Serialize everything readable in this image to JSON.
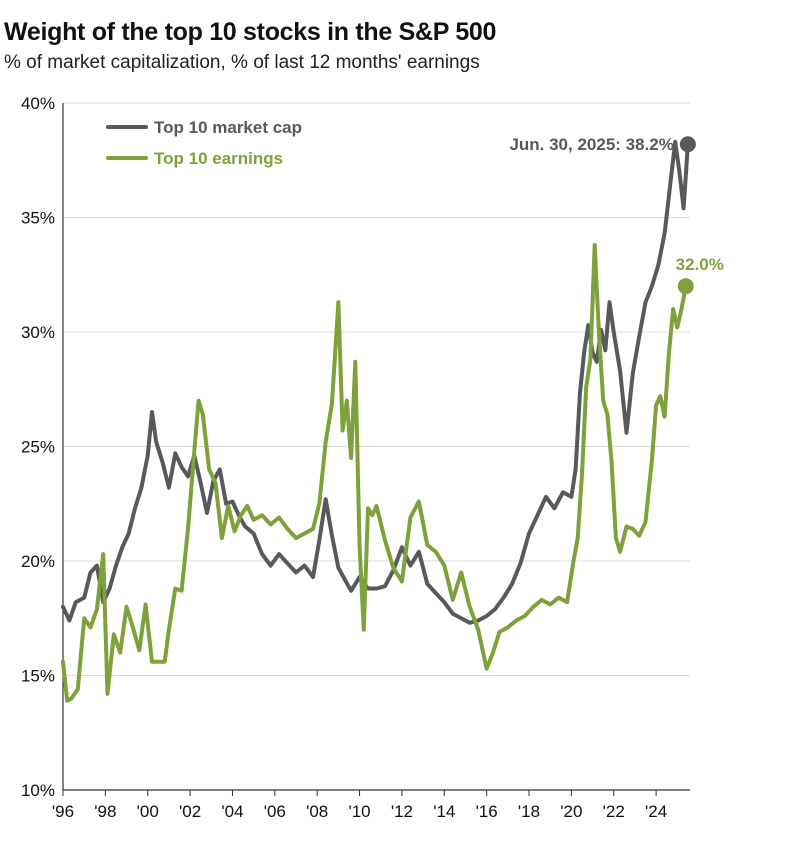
{
  "chart_data": {
    "type": "line",
    "title": "Weight of the top 10 stocks in the S&P 500",
    "subtitle": "% of market capitalization, % of last 12 months' earnings",
    "xlabel": "",
    "ylabel": "",
    "xlim": [
      1996,
      2025.6
    ],
    "ylim": [
      10,
      40
    ],
    "y_ticks": [
      10,
      15,
      20,
      25,
      30,
      35,
      40
    ],
    "y_tick_labels": [
      "10%",
      "15%",
      "20%",
      "25%",
      "30%",
      "35%",
      "40%"
    ],
    "x_ticks": [
      1996,
      1998,
      2000,
      2002,
      2004,
      2006,
      2008,
      2010,
      2012,
      2014,
      2016,
      2018,
      2020,
      2022,
      2024
    ],
    "x_tick_labels": [
      "'96",
      "'98",
      "'00",
      "'02",
      "'04",
      "'06",
      "'08",
      "'10",
      "'12",
      "'14",
      "'16",
      "'18",
      "'20",
      "'22",
      "'24"
    ],
    "grid": true,
    "legend_position": "top-left",
    "series": [
      {
        "name": "Top 10 market cap",
        "color": "#58595b",
        "x": [
          1996.0,
          1996.3,
          1996.6,
          1997.0,
          1997.3,
          1997.6,
          1997.9,
          1998.2,
          1998.5,
          1998.8,
          1999.1,
          1999.4,
          1999.7,
          2000.0,
          2000.2,
          2000.4,
          2000.7,
          2001.0,
          2001.3,
          2001.6,
          2001.9,
          2002.2,
          2002.5,
          2002.8,
          2003.1,
          2003.4,
          2003.7,
          2004.0,
          2004.3,
          2004.6,
          2005.0,
          2005.4,
          2005.8,
          2006.2,
          2006.6,
          2007.0,
          2007.4,
          2007.8,
          2008.1,
          2008.4,
          2008.7,
          2009.0,
          2009.3,
          2009.6,
          2010.0,
          2010.4,
          2010.8,
          2011.2,
          2011.6,
          2012.0,
          2012.4,
          2012.8,
          2013.2,
          2013.6,
          2014.0,
          2014.4,
          2014.8,
          2015.2,
          2015.6,
          2016.0,
          2016.4,
          2016.8,
          2017.2,
          2017.6,
          2018.0,
          2018.4,
          2018.8,
          2019.2,
          2019.6,
          2020.0,
          2020.2,
          2020.4,
          2020.6,
          2020.8,
          2021.0,
          2021.2,
          2021.4,
          2021.6,
          2021.8,
          2022.0,
          2022.3,
          2022.6,
          2022.9,
          2023.2,
          2023.5,
          2023.8,
          2024.1,
          2024.4,
          2024.7,
          2024.9,
          2025.1,
          2025.3,
          2025.5
        ],
        "values": [
          18.0,
          17.4,
          18.2,
          18.4,
          19.5,
          19.8,
          18.2,
          18.8,
          19.8,
          20.6,
          21.2,
          22.3,
          23.2,
          24.6,
          26.5,
          25.2,
          24.3,
          23.2,
          24.7,
          24.1,
          23.7,
          24.6,
          23.4,
          22.1,
          23.5,
          24.0,
          22.5,
          22.6,
          22.0,
          21.5,
          21.2,
          20.3,
          19.8,
          20.3,
          19.9,
          19.5,
          19.8,
          19.3,
          20.9,
          22.7,
          21.1,
          19.7,
          19.2,
          18.7,
          19.3,
          18.8,
          18.8,
          18.9,
          19.6,
          20.6,
          19.8,
          20.4,
          19.0,
          18.6,
          18.2,
          17.7,
          17.5,
          17.3,
          17.4,
          17.6,
          17.9,
          18.4,
          19.0,
          19.9,
          21.2,
          22.0,
          22.8,
          22.3,
          23.0,
          22.8,
          24.0,
          27.3,
          29.1,
          30.3,
          29.1,
          28.7,
          30.1,
          29.2,
          31.3,
          30.0,
          28.3,
          25.6,
          28.2,
          29.8,
          31.3,
          32.0,
          32.9,
          34.3,
          36.7,
          38.3,
          37.0,
          35.4,
          38.2
        ]
      },
      {
        "name": "Top 10 earnings",
        "color": "#7ea13b",
        "x": [
          1996.0,
          1996.2,
          1996.4,
          1996.7,
          1997.0,
          1997.3,
          1997.6,
          1997.9,
          1998.1,
          1998.4,
          1998.7,
          1999.0,
          1999.3,
          1999.6,
          1999.9,
          2000.2,
          2000.5,
          2000.8,
          2001.0,
          2001.3,
          2001.6,
          2001.9,
          2002.2,
          2002.4,
          2002.6,
          2002.9,
          2003.2,
          2003.5,
          2003.8,
          2004.1,
          2004.4,
          2004.7,
          2005.0,
          2005.4,
          2005.8,
          2006.2,
          2006.6,
          2007.0,
          2007.4,
          2007.8,
          2008.1,
          2008.4,
          2008.7,
          2009.0,
          2009.2,
          2009.4,
          2009.6,
          2009.8,
          2010.0,
          2010.2,
          2010.4,
          2010.6,
          2010.8,
          2011.2,
          2011.6,
          2012.0,
          2012.4,
          2012.8,
          2013.2,
          2013.6,
          2014.0,
          2014.4,
          2014.8,
          2015.2,
          2015.6,
          2016.0,
          2016.3,
          2016.6,
          2017.0,
          2017.4,
          2017.8,
          2018.2,
          2018.6,
          2019.0,
          2019.4,
          2019.8,
          2020.1,
          2020.3,
          2020.5,
          2020.7,
          2020.9,
          2021.1,
          2021.3,
          2021.5,
          2021.7,
          2021.9,
          2022.1,
          2022.3,
          2022.6,
          2022.9,
          2023.2,
          2023.5,
          2023.8,
          2024.0,
          2024.2,
          2024.4,
          2024.6,
          2024.8,
          2025.0,
          2025.2,
          2025.4
        ],
        "values": [
          15.6,
          13.9,
          14.0,
          14.4,
          17.5,
          17.1,
          17.9,
          20.3,
          14.2,
          16.8,
          16.0,
          18.0,
          17.1,
          16.1,
          18.1,
          15.6,
          15.6,
          15.6,
          17.0,
          18.8,
          18.7,
          21.4,
          24.8,
          27.0,
          26.4,
          24.0,
          23.4,
          21.0,
          22.4,
          21.3,
          22.0,
          22.4,
          21.8,
          22.0,
          21.6,
          21.9,
          21.4,
          21.0,
          21.2,
          21.4,
          22.5,
          25.2,
          26.9,
          31.3,
          25.7,
          27.0,
          24.5,
          28.7,
          20.6,
          17.0,
          22.3,
          22.0,
          22.4,
          20.9,
          19.7,
          19.1,
          21.9,
          22.6,
          20.7,
          20.4,
          19.8,
          18.3,
          19.5,
          18.0,
          17.0,
          15.3,
          16.0,
          16.9,
          17.1,
          17.4,
          17.6,
          18.0,
          18.3,
          18.1,
          18.4,
          18.2,
          20.0,
          21.0,
          23.8,
          27.6,
          28.8,
          33.8,
          30.0,
          27.0,
          26.4,
          24.3,
          21.0,
          20.4,
          21.5,
          21.4,
          21.1,
          21.7,
          24.4,
          26.8,
          27.2,
          26.3,
          29.0,
          31.0,
          30.2,
          31.0,
          32.0
        ]
      }
    ],
    "annotations": [
      {
        "series": "Top 10 market cap",
        "x": 2025.5,
        "y": 38.2,
        "text": "Jun. 30, 2025: 38.2%"
      },
      {
        "series": "Top 10 earnings",
        "x": 2025.4,
        "y": 32.0,
        "text": "32.0%"
      }
    ]
  }
}
